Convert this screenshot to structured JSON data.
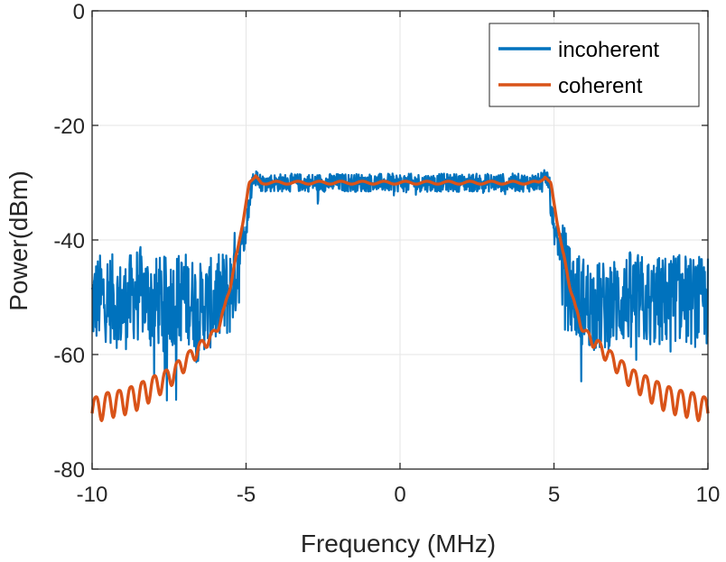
{
  "chart_data": {
    "type": "line",
    "title": "",
    "xlabel": "Frequency (MHz)",
    "ylabel": "Power(dBm)",
    "xlim": [
      -10,
      10
    ],
    "ylim": [
      -80,
      0
    ],
    "xticks": [
      -10,
      -5,
      0,
      5,
      10
    ],
    "yticks": [
      -80,
      -60,
      -40,
      -20,
      0
    ],
    "xtick_labels": [
      "-10",
      "-5",
      "0",
      "5",
      "10"
    ],
    "ytick_labels": [
      "-80",
      "-60",
      "-40",
      "-20",
      "0"
    ],
    "grid": true,
    "legend_position": "top-right",
    "series": [
      {
        "name": "incoherent",
        "color": "#0072BD",
        "description": "noisy spectrum: approx -50 dBm (±10) outside ±5 MHz band, approx -30 dBm (±2) inside band",
        "x": [
          -10,
          -9.5,
          -9,
          -8.5,
          -8,
          -7.5,
          -7,
          -6.5,
          -6,
          -5.5,
          -5,
          -4.8,
          -4.5,
          -4,
          -3,
          -2,
          -1,
          0,
          1,
          2,
          3,
          4,
          4.5,
          4.8,
          5,
          5.5,
          6,
          6.5,
          7,
          7.5,
          8,
          8.5,
          9,
          9.5,
          10
        ],
        "y": [
          -50,
          -49,
          -51,
          -48,
          -50,
          -50,
          -49,
          -51,
          -50,
          -48,
          -38,
          -29,
          -30,
          -30,
          -30,
          -30,
          -30,
          -30,
          -30,
          -30,
          -30,
          -30,
          -30,
          -29,
          -38,
          -48,
          -50,
          -51,
          -50,
          -49,
          -50,
          -50,
          -49,
          -50,
          -50
        ]
      },
      {
        "name": "coherent",
        "color": "#D95319",
        "x": [
          -10,
          -9.5,
          -9,
          -8.5,
          -8,
          -7.5,
          -7,
          -6.5,
          -6,
          -5.7,
          -5.4,
          -5.1,
          -4.9,
          -4.7,
          -4.5,
          -4,
          -3,
          -2,
          -1,
          0,
          1,
          2,
          3,
          4,
          4.5,
          4.7,
          4.9,
          5.1,
          5.4,
          5.7,
          6,
          6.5,
          7,
          7.5,
          8,
          8.5,
          9,
          9.5,
          10
        ],
        "y": [
          -69,
          -68,
          -67.5,
          -66.5,
          -65,
          -63.5,
          -61,
          -58.5,
          -56,
          -52,
          -45,
          -37,
          -30,
          -29,
          -30,
          -30,
          -30,
          -30,
          -30,
          -30,
          -30,
          -30,
          -30,
          -30,
          -30,
          -29,
          -30,
          -37,
          -45,
          -52,
          -56,
          -58.5,
          -61,
          -63.5,
          -65,
          -66.5,
          -67.5,
          -68,
          -69
        ]
      }
    ]
  }
}
